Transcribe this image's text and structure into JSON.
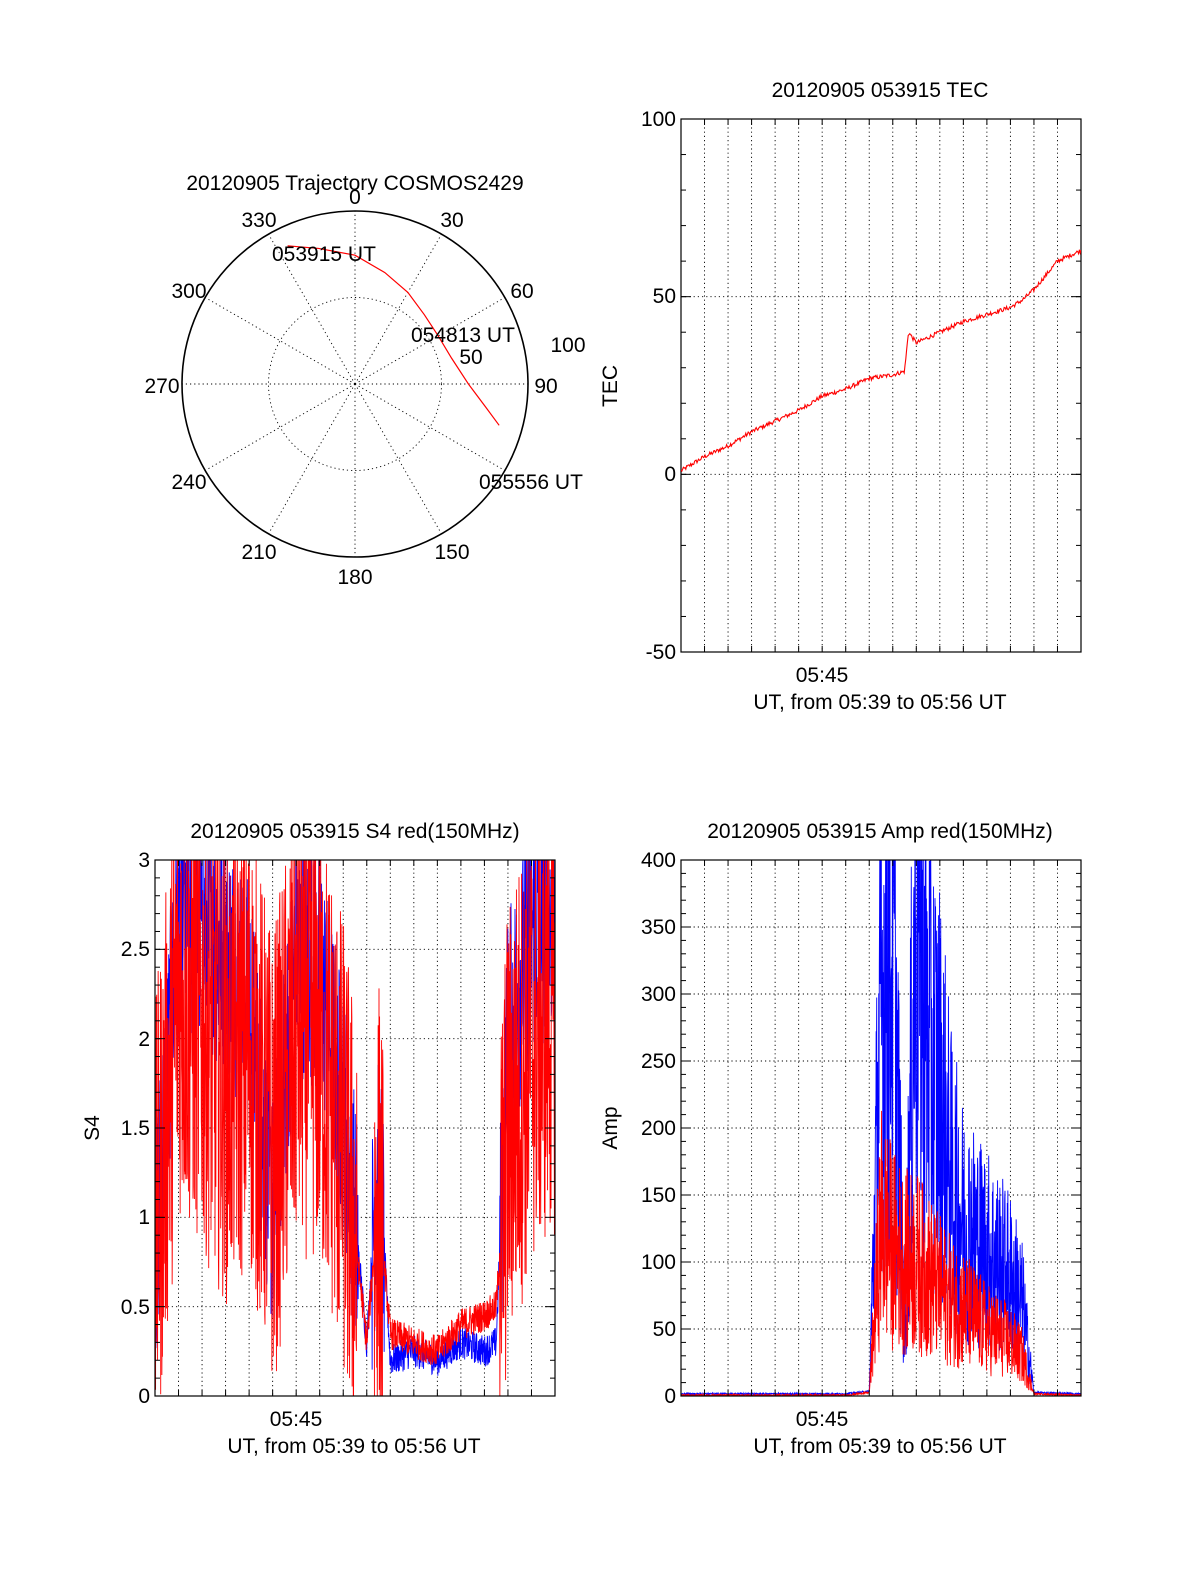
{
  "chart_data": [
    {
      "type": "polar",
      "title": "20120905 Trajectory COSMOS2429",
      "azimuth_labels": [
        "0",
        "30",
        "60",
        "90",
        "150",
        "180",
        "210",
        "240",
        "270",
        "300",
        "330"
      ],
      "radial_labels": [
        "50",
        "100"
      ],
      "trajectory_labels": [
        "053915 UT",
        "054813 UT",
        "055556 UT"
      ],
      "trajectory": [
        {
          "az": 334,
          "el": 10
        },
        {
          "az": 345,
          "el": 17
        },
        {
          "az": 0,
          "el": 23
        },
        {
          "az": 15,
          "el": 30
        },
        {
          "az": 30,
          "el": 35
        },
        {
          "az": 45,
          "el": 39
        },
        {
          "az": 60,
          "el": 40
        },
        {
          "az": 75,
          "el": 38
        },
        {
          "az": 90,
          "el": 31
        },
        {
          "az": 100,
          "el": 21
        },
        {
          "az": 106,
          "el": 12
        }
      ],
      "colors": {
        "trajectory": "#ff0000"
      }
    },
    {
      "type": "line",
      "title": "20120905 053915 TEC",
      "xlabel": "UT, from 05:39 to 05:56 UT",
      "ylabel": "TEC",
      "x_tick_labels": [
        "05:45"
      ],
      "y_tick_labels": [
        "100",
        "50",
        "0",
        "-50"
      ],
      "xlim": [
        "05:39",
        "05:56"
      ],
      "ylim": [
        -50,
        100
      ],
      "grid": true,
      "series": [
        {
          "color": "#ff0000",
          "x": [
            "05:39",
            "05:40",
            "05:41",
            "05:42",
            "05:43",
            "05:44",
            "05:45",
            "05:46",
            "05:47",
            "05:48",
            "05:48:30",
            "05:48:40",
            "05:49",
            "05:50",
            "05:51",
            "05:52",
            "05:53",
            "05:53:30",
            "05:54",
            "05:55",
            "05:56"
          ],
          "y": [
            1,
            5,
            8,
            12,
            15,
            18,
            22,
            24,
            27,
            28,
            29,
            40,
            37,
            40,
            43,
            45,
            47,
            49,
            52,
            60,
            63
          ]
        }
      ]
    },
    {
      "type": "line",
      "title": "20120905 053915 S4 red(150MHz)",
      "xlabel": "UT, from 05:39 to 05:56 UT",
      "ylabel": "S4",
      "x_tick_labels": [
        "05:45"
      ],
      "y_tick_labels": [
        "3",
        "2.5",
        "2",
        "1.5",
        "1",
        "0.5",
        "0"
      ],
      "xlim": [
        "05:39",
        "05:56"
      ],
      "ylim": [
        0,
        3
      ],
      "grid": true,
      "series": [
        {
          "color": "#0000ff",
          "x": [
            "05:39",
            "05:40",
            "05:41",
            "05:42",
            "05:43",
            "05:44",
            "05:45",
            "05:46",
            "05:47",
            "05:47:30",
            "05:48",
            "05:48:30",
            "05:49",
            "05:50",
            "05:51",
            "05:52",
            "05:53",
            "05:53:30",
            "05:54",
            "05:55",
            "05:56"
          ],
          "y": [
            0.8,
            2.7,
            2.6,
            2.5,
            2.2,
            1.0,
            2.5,
            2.4,
            1.6,
            1.0,
            0.3,
            1.4,
            0.2,
            0.25,
            0.2,
            0.3,
            0.25,
            0.3,
            2.0,
            2.6,
            2.7
          ]
        },
        {
          "color": "#ff0000",
          "x": [
            "05:39",
            "05:40",
            "05:41",
            "05:42",
            "05:43",
            "05:44",
            "05:45",
            "05:46",
            "05:47",
            "05:47:30",
            "05:48",
            "05:48:30",
            "05:49",
            "05:50",
            "05:51",
            "05:52",
            "05:53",
            "05:53:30",
            "05:54",
            "05:55",
            "05:56"
          ],
          "y": [
            0.9,
            2.3,
            2.1,
            1.8,
            2.0,
            1.3,
            2.1,
            2.0,
            1.4,
            0.9,
            0.3,
            1.1,
            0.35,
            0.3,
            0.25,
            0.4,
            0.45,
            0.5,
            1.5,
            2.0,
            2.2
          ]
        }
      ]
    },
    {
      "type": "line",
      "title": "20120905 053915 Amp red(150MHz)",
      "xlabel": "UT, from 05:39 to 05:56 UT",
      "ylabel": "Amp",
      "x_tick_labels": [
        "05:45"
      ],
      "y_tick_labels": [
        "400",
        "350",
        "300",
        "250",
        "200",
        "150",
        "100",
        "50",
        "0"
      ],
      "xlim": [
        "05:39",
        "05:56"
      ],
      "ylim": [
        0,
        400
      ],
      "grid": true,
      "series": [
        {
          "color": "#0000ff",
          "x": [
            "05:39",
            "05:42",
            "05:46",
            "05:47",
            "05:47:30",
            "05:48",
            "05:48:30",
            "05:49",
            "05:49:30",
            "05:50",
            "05:50:30",
            "05:51",
            "05:52",
            "05:53",
            "05:53:30",
            "05:54",
            "05:56"
          ],
          "y": [
            1,
            1,
            1,
            3,
            290,
            345,
            40,
            375,
            260,
            230,
            160,
            130,
            110,
            90,
            70,
            2,
            1
          ]
        },
        {
          "color": "#ff0000",
          "x": [
            "05:39",
            "05:42",
            "05:46",
            "05:47",
            "05:47:30",
            "05:48",
            "05:48:30",
            "05:49",
            "05:49:30",
            "05:50",
            "05:50:30",
            "05:51",
            "05:52",
            "05:53",
            "05:53:30",
            "05:54",
            "05:56"
          ],
          "y": [
            0,
            0,
            0,
            2,
            130,
            110,
            100,
            100,
            90,
            80,
            70,
            65,
            50,
            40,
            30,
            1,
            0
          ]
        }
      ]
    }
  ]
}
